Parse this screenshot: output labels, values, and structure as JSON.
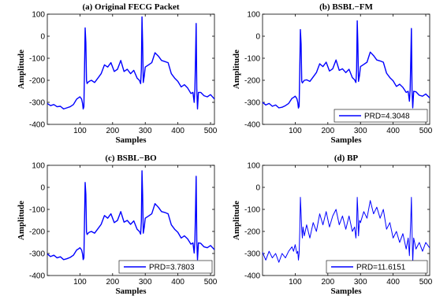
{
  "figure": {
    "line_color": "#0000ff"
  },
  "chart_data": [
    {
      "type": "line",
      "title": "(a) Original FECG Packet",
      "xlabel": "Samples",
      "ylabel": "Amplitude",
      "xlim": [
        0,
        512
      ],
      "ylim": [
        -400,
        100
      ],
      "xticks": [
        100,
        200,
        300,
        400,
        500
      ],
      "yticks": [
        -400,
        -300,
        -200,
        -100,
        0,
        100
      ],
      "legend": null,
      "series": [
        {
          "x": [
            0,
            10,
            20,
            30,
            40,
            50,
            60,
            70,
            80,
            90,
            95,
            100,
            105,
            108,
            110,
            112,
            114,
            116,
            118,
            120,
            122,
            124,
            128,
            135,
            145,
            155,
            165,
            175,
            185,
            195,
            205,
            215,
            225,
            235,
            245,
            255,
            265,
            275,
            282,
            286,
            288,
            290,
            292,
            294,
            297,
            300,
            310,
            320,
            330,
            340,
            350,
            360,
            370,
            380,
            390,
            400,
            410,
            420,
            430,
            440,
            446,
            450,
            452,
            454,
            456,
            458,
            460,
            463,
            470,
            480,
            490,
            500,
            512
          ],
          "y": [
            -305,
            -315,
            -310,
            -320,
            -318,
            -330,
            -325,
            -320,
            -310,
            -285,
            -280,
            -275,
            -285,
            -305,
            -330,
            -320,
            -150,
            38,
            -30,
            -200,
            -215,
            -210,
            -205,
            -200,
            -210,
            -190,
            -170,
            -130,
            -140,
            -120,
            -160,
            -150,
            -110,
            -160,
            -150,
            -170,
            -155,
            -190,
            -200,
            -215,
            -150,
            88,
            -30,
            -210,
            -180,
            -140,
            -130,
            -120,
            -75,
            -90,
            -110,
            -115,
            -120,
            -170,
            -190,
            -205,
            -230,
            -220,
            -235,
            -260,
            -255,
            -300,
            -240,
            -100,
            58,
            -240,
            -330,
            -255,
            -255,
            -270,
            -275,
            -265,
            -285
          ]
        }
      ]
    },
    {
      "type": "line",
      "title": "(b) BSBL−FM",
      "xlabel": "Samples",
      "ylabel": "Amplitude",
      "xlim": [
        0,
        512
      ],
      "ylim": [
        -400,
        100
      ],
      "xticks": [
        100,
        200,
        300,
        400,
        500
      ],
      "yticks": [
        -400,
        -300,
        -200,
        -100,
        0,
        100
      ],
      "legend": "PRD=4.3048",
      "series": [
        {
          "x": [
            0,
            10,
            20,
            30,
            40,
            50,
            60,
            70,
            80,
            90,
            95,
            100,
            105,
            108,
            110,
            112,
            114,
            116,
            118,
            120,
            122,
            124,
            128,
            135,
            145,
            155,
            165,
            175,
            185,
            195,
            205,
            215,
            225,
            235,
            245,
            255,
            265,
            275,
            282,
            286,
            288,
            290,
            292,
            294,
            297,
            300,
            310,
            320,
            330,
            340,
            350,
            360,
            370,
            380,
            390,
            400,
            410,
            420,
            430,
            440,
            446,
            450,
            452,
            454,
            456,
            458,
            460,
            463,
            470,
            480,
            490,
            500,
            512
          ],
          "y": [
            -300,
            -312,
            -305,
            -318,
            -312,
            -325,
            -322,
            -315,
            -305,
            -282,
            -278,
            -272,
            -283,
            -300,
            -326,
            -318,
            -155,
            30,
            -35,
            -205,
            -212,
            -208,
            -200,
            -198,
            -205,
            -185,
            -165,
            -125,
            -138,
            -118,
            -158,
            -148,
            -108,
            -155,
            -148,
            -165,
            -150,
            -188,
            -198,
            -210,
            -155,
            70,
            -35,
            -205,
            -178,
            -138,
            -128,
            -118,
            -72,
            -88,
            -108,
            -112,
            -118,
            -168,
            -188,
            -202,
            -228,
            -218,
            -232,
            -255,
            -250,
            -295,
            -245,
            -110,
            35,
            -245,
            -325,
            -250,
            -252,
            -268,
            -272,
            -262,
            -280
          ]
        }
      ]
    },
    {
      "type": "line",
      "title": "(c) BSBL−BO",
      "xlabel": "Samples",
      "ylabel": "Amplitude",
      "xlim": [
        0,
        512
      ],
      "ylim": [
        -400,
        100
      ],
      "xticks": [
        100,
        200,
        300,
        400,
        500
      ],
      "yticks": [
        -400,
        -300,
        -200,
        -100,
        0,
        100
      ],
      "legend": "PRD=3.7803",
      "series": [
        {
          "x": [
            0,
            10,
            20,
            30,
            40,
            50,
            60,
            70,
            80,
            90,
            95,
            100,
            105,
            108,
            110,
            112,
            114,
            116,
            118,
            120,
            122,
            124,
            128,
            135,
            145,
            155,
            165,
            175,
            185,
            195,
            205,
            215,
            225,
            235,
            245,
            255,
            265,
            275,
            282,
            286,
            288,
            290,
            292,
            294,
            297,
            300,
            310,
            320,
            330,
            340,
            350,
            360,
            370,
            380,
            390,
            400,
            410,
            420,
            430,
            440,
            446,
            450,
            452,
            454,
            456,
            458,
            460,
            463,
            470,
            480,
            490,
            500,
            512
          ],
          "y": [
            -302,
            -314,
            -308,
            -320,
            -315,
            -328,
            -324,
            -318,
            -308,
            -284,
            -280,
            -274,
            -284,
            -302,
            -328,
            -320,
            -150,
            22,
            -32,
            -202,
            -214,
            -210,
            -204,
            -200,
            -208,
            -188,
            -168,
            -128,
            -140,
            -120,
            -160,
            -150,
            -110,
            -158,
            -150,
            -168,
            -152,
            -190,
            -200,
            -212,
            -152,
            75,
            -32,
            -208,
            -180,
            -140,
            -130,
            -120,
            -74,
            -90,
            -110,
            -114,
            -120,
            -170,
            -190,
            -204,
            -230,
            -220,
            -234,
            -258,
            -252,
            -298,
            -242,
            -105,
            50,
            -242,
            -328,
            -252,
            -254,
            -270,
            -274,
            -264,
            -283
          ]
        }
      ]
    },
    {
      "type": "line",
      "title": "(d) BP",
      "xlabel": "Samples",
      "ylabel": "Amplitude",
      "xlim": [
        0,
        512
      ],
      "ylim": [
        -400,
        100
      ],
      "xticks": [
        100,
        200,
        300,
        400,
        500
      ],
      "yticks": [
        -400,
        -300,
        -200,
        -100,
        0,
        100
      ],
      "legend": "PRD=11.6151",
      "series": [
        {
          "x": [
            0,
            10,
            20,
            30,
            40,
            50,
            60,
            70,
            80,
            90,
            95,
            100,
            105,
            108,
            110,
            112,
            114,
            116,
            118,
            120,
            122,
            124,
            128,
            135,
            145,
            155,
            165,
            175,
            185,
            195,
            205,
            215,
            225,
            235,
            245,
            255,
            265,
            275,
            282,
            286,
            288,
            290,
            292,
            294,
            297,
            300,
            310,
            320,
            330,
            340,
            350,
            360,
            370,
            380,
            390,
            400,
            410,
            420,
            430,
            440,
            446,
            450,
            452,
            454,
            456,
            458,
            460,
            463,
            470,
            480,
            490,
            500,
            512
          ],
          "y": [
            -295,
            -330,
            -290,
            -320,
            -300,
            -340,
            -300,
            -320,
            -290,
            -270,
            -290,
            -260,
            -300,
            -290,
            -330,
            -300,
            -200,
            -45,
            -120,
            -190,
            -230,
            -180,
            -220,
            -170,
            -230,
            -160,
            -200,
            -120,
            -170,
            -110,
            -180,
            -130,
            -100,
            -170,
            -130,
            -190,
            -130,
            -200,
            -180,
            -230,
            -180,
            -45,
            -110,
            -220,
            -150,
            -160,
            -110,
            -140,
            -60,
            -120,
            -90,
            -140,
            -100,
            -190,
            -160,
            -230,
            -200,
            -250,
            -210,
            -280,
            -230,
            -310,
            -220,
            -150,
            -45,
            -200,
            -340,
            -230,
            -280,
            -250,
            -290,
            -250,
            -275
          ]
        }
      ]
    }
  ]
}
